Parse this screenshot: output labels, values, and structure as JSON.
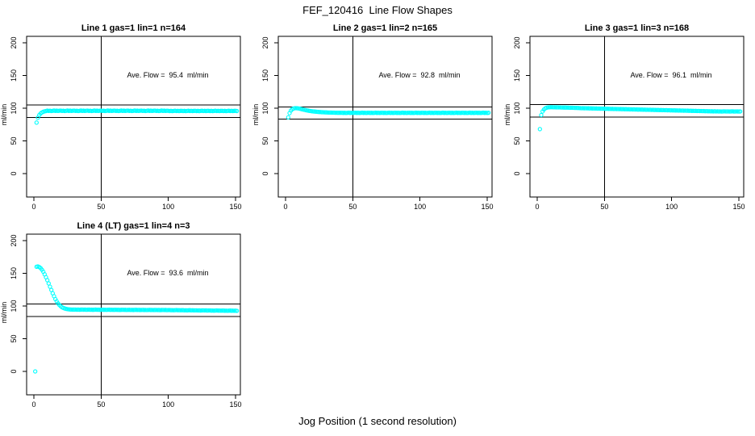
{
  "colors": {
    "background": "#FFFFFF",
    "axis": "#000000",
    "marker": "#00FFFF"
  },
  "chart_data": {
    "type": "scatter",
    "title": "FEF_120416  Line Flow Shapes",
    "xlabel": "Jog Position (1 second resolution)",
    "ylabel": "ml/min",
    "x_ticks": [
      0,
      50,
      100,
      150
    ],
    "y_ticks": [
      0,
      50,
      100,
      150,
      200
    ],
    "xlim": [
      -5,
      155
    ],
    "ylim": [
      -40,
      215
    ],
    "grid": "off",
    "marker": "open-circle",
    "marker_color": "#00FFFF",
    "reference_note": "each panel: vertical line at x=50, horizontal tolerance lines at average flow +/-10%",
    "panels": [
      {
        "title": "Line 1 gas=1 lin=1 n=164",
        "annotation": "Ave. Flow =  95.4  ml/min",
        "ave_flow": 95.4,
        "hlines": [
          104.9,
          85.9
        ],
        "vline": 50,
        "x_start": 2,
        "dx": 1,
        "y": [
          78.0,
          85.5,
          89.5,
          92.0,
          93.5,
          94.5,
          95.2,
          95.6,
          96.3,
          95.8,
          96.1,
          95.7,
          96.0,
          96.4,
          95.9,
          96.2,
          95.8,
          96.1,
          96.3,
          95.8,
          96.1,
          95.7,
          96.0,
          96.4,
          95.9,
          96.2,
          95.8,
          96.1,
          96.3,
          95.8,
          96.1,
          95.7,
          96.0,
          96.4,
          95.9,
          96.2,
          95.8,
          96.1,
          96.3,
          95.8,
          96.1,
          95.7,
          96.0,
          96.4,
          95.9,
          96.2,
          95.8,
          96.1,
          96.3,
          95.8,
          96.1,
          95.7,
          96.0,
          96.4,
          95.9,
          96.2,
          95.8,
          96.1,
          96.3,
          95.8,
          96.1,
          95.7,
          96.0,
          96.4,
          95.9,
          96.2,
          95.8,
          96.1,
          96.3,
          95.8,
          96.1,
          95.7,
          96.0,
          96.4,
          95.9,
          96.2,
          95.8,
          96.1,
          96.3,
          95.8,
          96.1,
          95.7,
          96.0,
          96.4,
          95.9,
          96.2,
          95.8,
          96.1,
          96.3,
          95.8,
          96.1,
          95.7,
          96.0,
          96.4,
          95.9,
          96.2,
          95.8,
          96.1,
          96.0,
          95.6,
          95.9,
          95.5,
          95.8,
          96.1,
          95.7,
          96.0,
          95.6,
          95.9,
          96.0,
          95.6,
          95.9,
          95.5,
          95.8,
          96.1,
          95.7,
          96.0,
          95.6,
          95.9,
          96.0,
          95.6,
          95.9,
          95.5,
          95.8,
          96.1,
          95.7,
          96.0,
          95.6,
          95.9,
          96.0,
          95.6,
          95.9,
          95.5,
          95.8,
          96.1,
          95.7,
          96.0,
          95.6,
          95.9,
          96.0,
          95.6,
          95.9,
          95.5,
          95.8,
          96.1,
          95.7,
          96.0,
          95.6,
          95.9,
          96.0,
          95.6
        ]
      },
      {
        "title": "Line 2 gas=1 lin=2 n=165",
        "annotation": "Ave. Flow =  92.8  ml/min",
        "ave_flow": 92.8,
        "hlines": [
          102.1,
          83.5
        ],
        "vline": 50,
        "x_start": 2,
        "dx": 1,
        "y": [
          86.0,
          92.5,
          96.5,
          98.5,
          99.5,
          100.0,
          100.0,
          99.8,
          99.5,
          99.0,
          98.5,
          98.0,
          97.5,
          97.0,
          96.6,
          96.2,
          95.8,
          95.5,
          95.2,
          95.0,
          94.8,
          94.6,
          94.4,
          94.2,
          94.1,
          93.9,
          93.8,
          93.7,
          93.6,
          93.5,
          93.4,
          93.4,
          93.3,
          93.2,
          93.2,
          93.1,
          93.1,
          93.0,
          93.0,
          93.0,
          93.1,
          92.8,
          93.0,
          92.7,
          92.9,
          93.2,
          92.8,
          93.1,
          92.7,
          93.0,
          93.1,
          92.8,
          93.0,
          92.7,
          92.9,
          93.2,
          92.8,
          93.1,
          92.7,
          93.0,
          93.1,
          92.8,
          93.0,
          92.7,
          92.9,
          93.2,
          92.8,
          93.1,
          92.7,
          93.0,
          93.1,
          92.8,
          93.0,
          92.7,
          92.9,
          93.2,
          92.8,
          93.1,
          92.7,
          93.0,
          93.1,
          92.8,
          93.0,
          92.7,
          92.9,
          93.2,
          92.8,
          93.1,
          92.7,
          93.0,
          93.1,
          92.8,
          93.0,
          92.7,
          92.9,
          93.2,
          92.8,
          93.1,
          92.7,
          93.0,
          93.1,
          92.8,
          93.0,
          92.7,
          92.9,
          93.2,
          92.8,
          93.1,
          92.7,
          93.0,
          93.1,
          92.8,
          93.0,
          92.7,
          92.9,
          93.2,
          92.8,
          93.1,
          92.7,
          93.0,
          93.1,
          92.8,
          93.0,
          92.7,
          92.9,
          93.2,
          92.8,
          93.1,
          92.7,
          93.0,
          93.1,
          92.8,
          93.0,
          92.7,
          92.9,
          93.2,
          92.8,
          93.1,
          92.7,
          93.0,
          93.1,
          92.8,
          93.0,
          92.7,
          92.9,
          93.2,
          92.8,
          93.1,
          92.7,
          93.0
        ]
      },
      {
        "title": "Line 3 gas=1 lin=3 n=168",
        "annotation": "Ave. Flow =  96.1  ml/min",
        "ave_flow": 96.1,
        "hlines": [
          105.7,
          86.5
        ],
        "vline": 50,
        "x_start": 2,
        "dx": 1,
        "y": [
          68.0,
          89.5,
          95.0,
          98.0,
          99.8,
          100.8,
          101.2,
          101.4,
          101.5,
          101.5,
          101.4,
          101.4,
          101.3,
          101.3,
          101.2,
          101.2,
          101.1,
          101.1,
          101.0,
          101.0,
          100.9,
          100.9,
          100.8,
          100.7,
          100.7,
          100.6,
          100.5,
          100.5,
          100.4,
          100.3,
          100.2,
          100.0,
          100.1,
          99.9,
          100.0,
          99.8,
          99.9,
          99.7,
          99.8,
          99.6,
          99.7,
          99.5,
          99.6,
          99.4,
          99.5,
          99.3,
          99.4,
          99.2,
          99.3,
          99.1,
          99.2,
          99.0,
          99.1,
          98.9,
          99.0,
          98.8,
          98.9,
          98.7,
          98.8,
          98.6,
          98.7,
          98.5,
          98.6,
          98.4,
          98.5,
          98.3,
          98.4,
          98.2,
          98.3,
          98.1,
          98.2,
          98.0,
          98.1,
          97.9,
          98.0,
          97.8,
          97.9,
          97.7,
          97.8,
          97.6,
          97.7,
          97.5,
          97.6,
          97.4,
          97.5,
          97.3,
          97.4,
          97.2,
          97.3,
          97.1,
          97.2,
          97.0,
          97.1,
          96.9,
          97.0,
          96.8,
          96.9,
          96.7,
          96.8,
          96.6,
          96.7,
          96.5,
          96.6,
          96.4,
          96.5,
          96.3,
          96.4,
          96.2,
          96.3,
          96.1,
          96.2,
          96.0,
          96.1,
          95.9,
          96.0,
          95.8,
          95.9,
          95.7,
          95.8,
          95.6,
          95.7,
          95.5,
          95.6,
          95.4,
          95.5,
          95.3,
          95.4,
          95.2,
          95.3,
          95.1,
          95.3,
          95.1,
          95.2,
          95.0,
          95.1,
          94.9,
          95.0,
          95.2,
          95.1,
          95.0,
          95.1,
          94.9,
          95.0,
          95.2,
          95.0,
          94.9,
          95.1,
          95.0,
          94.9,
          95.0
        ]
      },
      {
        "title": "Line 4 (LT) gas=1 lin=4 n=3",
        "annotation": "Ave. Flow =  93.6  ml/min",
        "ave_flow": 93.6,
        "hlines": [
          103.0,
          84.2
        ],
        "vline": 50,
        "x_start": 1,
        "dx": 1,
        "y": [
          0.0,
          160.0,
          160.5,
          159.5,
          158.0,
          155.5,
          152.5,
          148.5,
          144.0,
          139.5,
          134.5,
          129.5,
          124.5,
          119.5,
          115.0,
          110.5,
          107.0,
          104.0,
          101.5,
          99.5,
          98.0,
          97.0,
          96.2,
          95.6,
          95.2,
          94.9,
          94.7,
          94.6,
          94.5,
          94.5,
          94.6,
          94.4,
          94.5,
          94.3,
          94.5,
          94.6,
          94.4,
          94.5,
          94.3,
          94.4,
          94.5,
          94.3,
          94.4,
          94.2,
          94.4,
          94.5,
          94.3,
          94.4,
          94.2,
          94.3,
          94.4,
          94.2,
          94.3,
          94.1,
          94.3,
          94.4,
          94.2,
          94.3,
          94.1,
          94.2,
          94.3,
          94.1,
          94.2,
          94.0,
          94.2,
          94.3,
          94.1,
          94.2,
          94.0,
          94.1,
          94.2,
          94.0,
          94.1,
          93.9,
          94.1,
          94.2,
          94.0,
          94.1,
          93.9,
          94.0,
          94.1,
          93.9,
          94.0,
          93.8,
          94.0,
          94.1,
          93.9,
          94.0,
          93.8,
          93.9,
          94.0,
          93.8,
          93.9,
          93.7,
          93.9,
          94.0,
          93.8,
          93.9,
          93.7,
          93.8,
          93.8,
          93.6,
          93.7,
          93.5,
          93.7,
          93.8,
          93.6,
          93.7,
          93.5,
          93.6,
          93.6,
          93.4,
          93.5,
          93.3,
          93.5,
          93.6,
          93.4,
          93.5,
          93.3,
          93.4,
          93.4,
          93.2,
          93.3,
          93.1,
          93.3,
          93.4,
          93.2,
          93.3,
          93.1,
          93.2,
          93.2,
          93.0,
          93.1,
          92.9,
          93.1,
          93.2,
          93.0,
          93.1,
          92.9,
          93.0,
          93.0,
          92.8,
          92.9,
          92.7,
          92.9,
          93.0,
          92.8,
          92.9,
          92.7,
          92.8,
          92.6
        ]
      }
    ]
  }
}
